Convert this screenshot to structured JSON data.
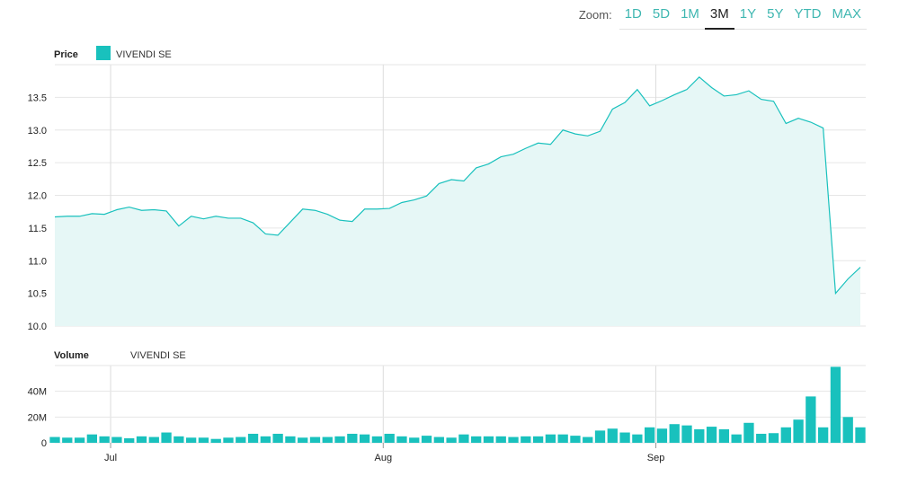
{
  "zoom": {
    "label": "Zoom:",
    "options": [
      "1D",
      "5D",
      "1M",
      "3M",
      "1Y",
      "5Y",
      "YTD",
      "MAX"
    ],
    "active": "3M"
  },
  "price_panel": {
    "title": "Price",
    "legend": "VIVENDI SE"
  },
  "volume_panel": {
    "title": "Volume",
    "legend": "VIVENDI SE"
  },
  "colors": {
    "accent": "#19c1bd",
    "area_fill": "#e6f7f6",
    "grid": "#e6e6e6",
    "text": "#222222"
  },
  "chart_data": [
    {
      "type": "area",
      "title": "Price",
      "legend": [
        "VIVENDI SE"
      ],
      "ylim": [
        10.0,
        14.0
      ],
      "yticks": [
        "10.0",
        "10.5",
        "11.0",
        "11.5",
        "12.0",
        "12.5",
        "13.0",
        "13.5"
      ],
      "x_tick_labels": [
        {
          "label": "Jul",
          "index": 4.5
        },
        {
          "label": "Aug",
          "index": 26.5
        },
        {
          "label": "Sep",
          "index": 48.5
        }
      ],
      "grid": true,
      "series": [
        {
          "name": "VIVENDI SE",
          "values": [
            11.67,
            11.68,
            11.68,
            11.72,
            11.71,
            11.78,
            11.82,
            11.77,
            11.78,
            11.76,
            11.53,
            11.68,
            11.64,
            11.68,
            11.65,
            11.65,
            11.58,
            11.41,
            11.39,
            11.59,
            11.79,
            11.77,
            11.71,
            11.62,
            11.6,
            11.79,
            11.79,
            11.8,
            11.89,
            11.93,
            11.99,
            12.18,
            12.24,
            12.22,
            12.42,
            12.48,
            12.59,
            12.63,
            12.72,
            12.8,
            12.78,
            13.0,
            12.94,
            12.91,
            12.98,
            13.32,
            13.42,
            13.62,
            13.37,
            13.45,
            13.54,
            13.62,
            13.81,
            13.65,
            13.52,
            13.54,
            13.6,
            13.47,
            13.44,
            13.1,
            13.18,
            13.12,
            13.03,
            10.5,
            10.72,
            10.9
          ]
        }
      ]
    },
    {
      "type": "bar",
      "title": "Volume",
      "legend": [
        "VIVENDI SE"
      ],
      "ylim": [
        0,
        60
      ],
      "yticks": [
        "0",
        "20M",
        "40M"
      ],
      "unit": "M",
      "grid": true,
      "series": [
        {
          "name": "VIVENDI SE",
          "values": [
            4.5,
            4,
            4,
            6.5,
            5,
            4.5,
            3.5,
            5,
            4.5,
            8,
            5,
            4,
            4,
            3,
            4,
            4.5,
            7,
            5,
            7,
            5,
            4,
            4.5,
            4.5,
            5,
            7,
            6.5,
            5,
            7,
            5,
            4,
            5.5,
            4.5,
            4,
            6.5,
            5,
            5,
            5,
            4.5,
            5,
            5,
            6.5,
            6.5,
            5.5,
            4.5,
            9.5,
            11,
            8,
            6.5,
            12,
            11,
            14.5,
            13.5,
            10.5,
            12.5,
            10.5,
            6.5,
            15.5,
            7,
            7.5,
            12,
            18,
            36,
            12,
            59,
            20,
            12
          ]
        }
      ]
    }
  ]
}
